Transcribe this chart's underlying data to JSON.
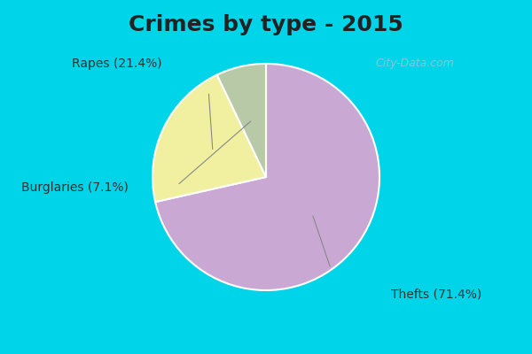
{
  "title": "Crimes by type - 2015",
  "slices": [
    {
      "label": "Thefts",
      "pct": 71.4,
      "color": "#c9a8d4"
    },
    {
      "label": "Rapes",
      "pct": 21.4,
      "color": "#f0f0a0"
    },
    {
      "label": "Burglaries",
      "pct": 7.1,
      "color": "#b8c9a8"
    }
  ],
  "background_color_top": "#00d4e8",
  "background_color_main": "#c8e8d8",
  "title_fontsize": 18,
  "label_fontsize": 10,
  "watermark": "City-Data.com"
}
